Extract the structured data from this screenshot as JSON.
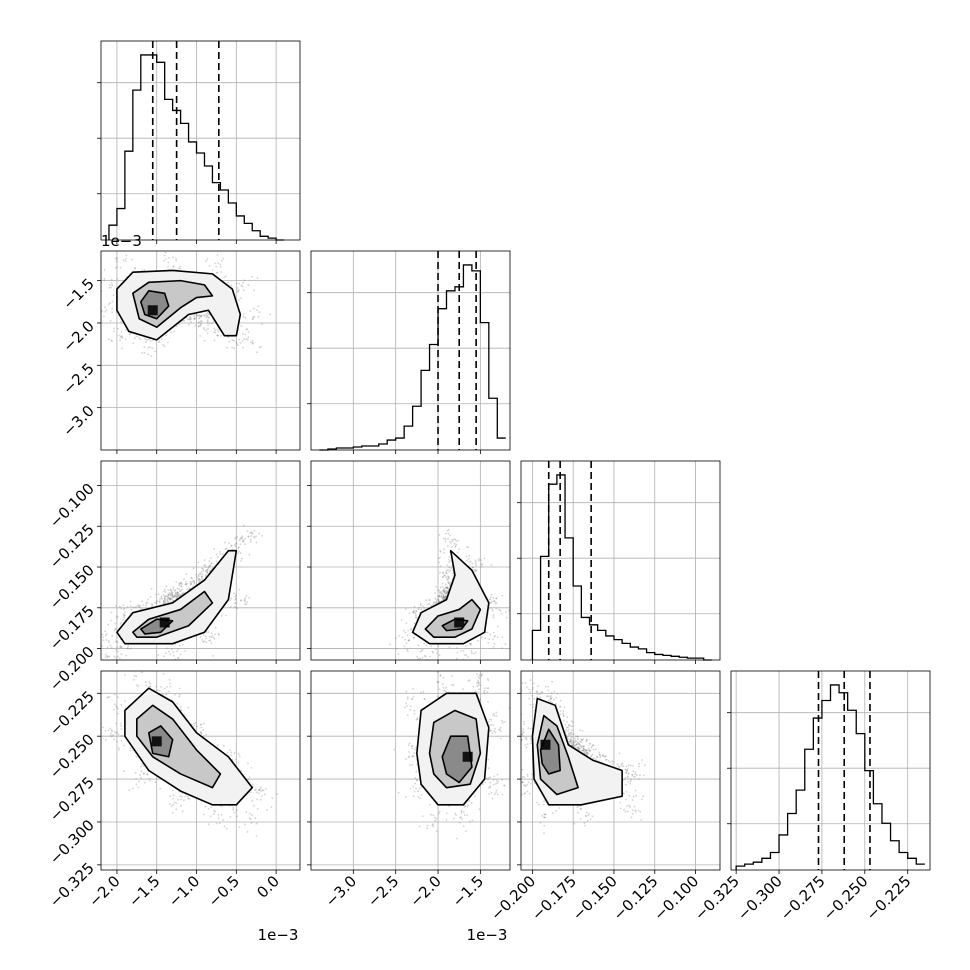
{
  "chart_data": {
    "type": "corner",
    "grid": true,
    "parameters": [
      {
        "range": [
          -0.0022,
          0.0003
        ],
        "ticks": [
          -0.002,
          -0.0015,
          -0.001,
          -0.0005,
          0.0
        ],
        "tick_labels": [
          "−2.0",
          "−1.5",
          "−1.0",
          "−0.5",
          "0.0"
        ],
        "offset_label": "1e−3",
        "quantiles": [
          -0.00155,
          -0.00125,
          -0.00072
        ]
      },
      {
        "range": [
          -0.0035,
          -0.00115
        ],
        "ticks": [
          -0.003,
          -0.0025,
          -0.002,
          -0.0015
        ],
        "tick_labels": [
          "−3.0",
          "−2.5",
          "−2.0",
          "−1.5"
        ],
        "offset_label": "1e−3",
        "quantiles": [
          -0.002,
          -0.00175,
          -0.00155
        ]
      },
      {
        "range": [
          -0.207,
          -0.085
        ],
        "ticks": [
          -0.2,
          -0.175,
          -0.15,
          -0.125,
          -0.1
        ],
        "tick_labels": [
          "−0.200",
          "−0.175",
          "−0.150",
          "−0.125",
          "−0.100"
        ],
        "offset_label": "",
        "quantiles": [
          -0.19,
          -0.183,
          -0.164
        ]
      },
      {
        "range": [
          -0.328,
          -0.212
        ],
        "ticks": [
          -0.325,
          -0.3,
          -0.275,
          -0.25,
          -0.225
        ],
        "tick_labels": [
          "−0.325",
          "−0.300",
          "−0.275",
          "−0.250",
          "−0.225"
        ],
        "offset_label": "",
        "quantiles": [
          -0.277,
          -0.262,
          -0.247
        ]
      }
    ],
    "marginals": [
      {
        "bins": [
          -0.0021,
          -0.002,
          -0.0019,
          -0.0018,
          -0.0017,
          -0.0016,
          -0.0015,
          -0.0014,
          -0.0013,
          -0.0012,
          -0.0011,
          -0.001,
          -0.0009,
          -0.0008,
          -0.0007,
          -0.0006,
          -0.0005,
          -0.0004,
          -0.0003,
          -0.0002,
          -0.0001,
          0.0,
          0.0001
        ],
        "counts": [
          0.08,
          0.17,
          0.48,
          0.81,
          1.0,
          1.0,
          0.96,
          0.76,
          0.7,
          0.63,
          0.53,
          0.47,
          0.4,
          0.31,
          0.27,
          0.2,
          0.13,
          0.09,
          0.05,
          0.02,
          0.01,
          0.0
        ]
      },
      {
        "bins": [
          -0.0034,
          -0.0033,
          -0.0032,
          -0.0031,
          -0.003,
          -0.0029,
          -0.0028,
          -0.0027,
          -0.0026,
          -0.0025,
          -0.0024,
          -0.0023,
          -0.0022,
          -0.0021,
          -0.002,
          -0.0019,
          -0.0018,
          -0.0017,
          -0.0016,
          -0.0015,
          -0.0014,
          -0.0013,
          -0.0012
        ],
        "counts": [
          0.0,
          0.005,
          0.01,
          0.01,
          0.015,
          0.02,
          0.02,
          0.03,
          0.05,
          0.06,
          0.12,
          0.22,
          0.4,
          0.53,
          0.71,
          0.8,
          0.82,
          0.93,
          0.9,
          0.64,
          0.26,
          0.06
        ]
      },
      {
        "bins": [
          -0.2,
          -0.195,
          -0.19,
          -0.185,
          -0.18,
          -0.175,
          -0.17,
          -0.165,
          -0.16,
          -0.155,
          -0.15,
          -0.145,
          -0.14,
          -0.135,
          -0.13,
          -0.125,
          -0.12,
          -0.115,
          -0.11,
          -0.105,
          -0.1,
          -0.095,
          -0.09
        ],
        "counts": [
          0.16,
          0.56,
          0.95,
          1.0,
          0.66,
          0.4,
          0.23,
          0.19,
          0.16,
          0.13,
          0.11,
          0.09,
          0.07,
          0.06,
          0.04,
          0.03,
          0.025,
          0.02,
          0.015,
          0.01,
          0.01,
          0.0
        ]
      },
      {
        "bins": [
          -0.325,
          -0.32,
          -0.315,
          -0.31,
          -0.305,
          -0.3,
          -0.295,
          -0.29,
          -0.285,
          -0.28,
          -0.275,
          -0.27,
          -0.265,
          -0.26,
          -0.255,
          -0.25,
          -0.245,
          -0.24,
          -0.235,
          -0.23,
          -0.225,
          -0.22,
          -0.215
        ],
        "counts": [
          0.02,
          0.03,
          0.04,
          0.06,
          0.09,
          0.18,
          0.29,
          0.41,
          0.62,
          0.78,
          0.87,
          0.95,
          0.91,
          0.82,
          0.7,
          0.51,
          0.34,
          0.24,
          0.15,
          0.09,
          0.06,
          0.03
        ]
      }
    ],
    "pairs": [
      {
        "x": 0,
        "y": 1,
        "peak": [
          -0.00155,
          -0.00185
        ],
        "contours": [
          [
            [
              -0.002,
              -0.0016
            ],
            [
              -0.0018,
              -0.0014
            ],
            [
              -0.0013,
              -0.00138
            ],
            [
              -0.0008,
              -0.00142
            ],
            [
              -0.00055,
              -0.0016
            ],
            [
              -0.00045,
              -0.0019
            ],
            [
              -0.0005,
              -0.00215
            ],
            [
              -0.00065,
              -0.00215
            ],
            [
              -0.00085,
              -0.00185
            ],
            [
              -0.0011,
              -0.0019
            ],
            [
              -0.0015,
              -0.0022
            ],
            [
              -0.00185,
              -0.0021
            ],
            [
              -0.002,
              -0.00185
            ]
          ],
          [
            [
              -0.0018,
              -0.00165
            ],
            [
              -0.0016,
              -0.00152
            ],
            [
              -0.0012,
              -0.0015
            ],
            [
              -0.0009,
              -0.00155
            ],
            [
              -0.0008,
              -0.00168
            ],
            [
              -0.001,
              -0.0017
            ],
            [
              -0.0012,
              -0.00182
            ],
            [
              -0.0015,
              -0.00205
            ],
            [
              -0.00172,
              -0.00195
            ]
          ],
          [
            [
              -0.0017,
              -0.00175
            ],
            [
              -0.0016,
              -0.00162
            ],
            [
              -0.0014,
              -0.00165
            ],
            [
              -0.00135,
              -0.0018
            ],
            [
              -0.0015,
              -0.00195
            ],
            [
              -0.00165,
              -0.0019
            ]
          ]
        ]
      },
      {
        "x": 0,
        "y": 2,
        "peak": [
          -0.0014,
          -0.184
        ],
        "contours": [
          [
            [
              -0.002,
              -0.19
            ],
            [
              -0.0018,
              -0.178
            ],
            [
              -0.0013,
              -0.172
            ],
            [
              -0.0009,
              -0.158
            ],
            [
              -0.0006,
              -0.14
            ],
            [
              -0.0005,
              -0.14
            ],
            [
              -0.0006,
              -0.17
            ],
            [
              -0.0009,
              -0.19
            ],
            [
              -0.0013,
              -0.197
            ],
            [
              -0.0019,
              -0.197
            ]
          ],
          [
            [
              -0.0018,
              -0.19
            ],
            [
              -0.0016,
              -0.182
            ],
            [
              -0.0012,
              -0.176
            ],
            [
              -0.0009,
              -0.165
            ],
            [
              -0.0008,
              -0.172
            ],
            [
              -0.0011,
              -0.186
            ],
            [
              -0.0015,
              -0.193
            ],
            [
              -0.00175,
              -0.193
            ]
          ],
          [
            [
              -0.0017,
              -0.188
            ],
            [
              -0.0015,
              -0.182
            ],
            [
              -0.0013,
              -0.183
            ],
            [
              -0.00145,
              -0.19
            ],
            [
              -0.00165,
              -0.191
            ]
          ]
        ]
      },
      {
        "x": 0,
        "y": 3,
        "peak": [
          -0.0015,
          -0.253
        ],
        "contours": [
          [
            [
              -0.0019,
              -0.235
            ],
            [
              -0.0016,
              -0.222
            ],
            [
              -0.0013,
              -0.23
            ],
            [
              -0.001,
              -0.248
            ],
            [
              -0.0006,
              -0.262
            ],
            [
              -0.0003,
              -0.28
            ],
            [
              -0.0005,
              -0.29
            ],
            [
              -0.0008,
              -0.29
            ],
            [
              -0.0012,
              -0.282
            ],
            [
              -0.0016,
              -0.27
            ],
            [
              -0.0019,
              -0.25
            ]
          ],
          [
            [
              -0.00175,
              -0.24
            ],
            [
              -0.00155,
              -0.232
            ],
            [
              -0.0013,
              -0.24
            ],
            [
              -0.001,
              -0.258
            ],
            [
              -0.0007,
              -0.272
            ],
            [
              -0.0008,
              -0.28
            ],
            [
              -0.0012,
              -0.272
            ],
            [
              -0.00155,
              -0.262
            ],
            [
              -0.00175,
              -0.25
            ]
          ],
          [
            [
              -0.0016,
              -0.248
            ],
            [
              -0.00145,
              -0.244
            ],
            [
              -0.0013,
              -0.252
            ],
            [
              -0.00135,
              -0.262
            ],
            [
              -0.00155,
              -0.26
            ]
          ]
        ]
      },
      {
        "x": 1,
        "y": 2,
        "peak": [
          -0.00175,
          -0.184
        ],
        "contours": [
          [
            [
              -0.0023,
              -0.19
            ],
            [
              -0.0022,
              -0.178
            ],
            [
              -0.0019,
              -0.17
            ],
            [
              -0.0018,
              -0.155
            ],
            [
              -0.00185,
              -0.14
            ],
            [
              -0.0016,
              -0.152
            ],
            [
              -0.0014,
              -0.172
            ],
            [
              -0.00145,
              -0.19
            ],
            [
              -0.0017,
              -0.197
            ],
            [
              -0.0021,
              -0.197
            ]
          ],
          [
            [
              -0.00215,
              -0.188
            ],
            [
              -0.002,
              -0.18
            ],
            [
              -0.00175,
              -0.176
            ],
            [
              -0.0016,
              -0.17
            ],
            [
              -0.0015,
              -0.176
            ],
            [
              -0.0016,
              -0.188
            ],
            [
              -0.0018,
              -0.193
            ],
            [
              -0.00205,
              -0.193
            ]
          ],
          [
            [
              -0.00195,
              -0.186
            ],
            [
              -0.0018,
              -0.182
            ],
            [
              -0.00165,
              -0.183
            ],
            [
              -0.00172,
              -0.188
            ],
            [
              -0.0019,
              -0.189
            ]
          ]
        ]
      },
      {
        "x": 1,
        "y": 3,
        "peak": [
          -0.00165,
          -0.262
        ],
        "contours": [
          [
            [
              -0.00225,
              -0.26
            ],
            [
              -0.0022,
              -0.235
            ],
            [
              -0.0019,
              -0.225
            ],
            [
              -0.00155,
              -0.225
            ],
            [
              -0.0014,
              -0.245
            ],
            [
              -0.00145,
              -0.275
            ],
            [
              -0.0017,
              -0.29
            ],
            [
              -0.002,
              -0.29
            ],
            [
              -0.0022,
              -0.278
            ]
          ],
          [
            [
              -0.0021,
              -0.26
            ],
            [
              -0.00205,
              -0.242
            ],
            [
              -0.0018,
              -0.235
            ],
            [
              -0.00155,
              -0.24
            ],
            [
              -0.0015,
              -0.26
            ],
            [
              -0.00162,
              -0.278
            ],
            [
              -0.0019,
              -0.28
            ],
            [
              -0.00205,
              -0.272
            ]
          ],
          [
            [
              -0.00195,
              -0.262
            ],
            [
              -0.00185,
              -0.25
            ],
            [
              -0.00165,
              -0.25
            ],
            [
              -0.0016,
              -0.268
            ],
            [
              -0.00175,
              -0.277
            ],
            [
              -0.0019,
              -0.272
            ]
          ]
        ]
      },
      {
        "x": 2,
        "y": 3,
        "peak": [
          -0.192,
          -0.255
        ],
        "contours": [
          [
            [
              -0.2,
              -0.25
            ],
            [
              -0.197,
              -0.228
            ],
            [
              -0.186,
              -0.232
            ],
            [
              -0.178,
              -0.255
            ],
            [
              -0.163,
              -0.264
            ],
            [
              -0.145,
              -0.27
            ],
            [
              -0.145,
              -0.285
            ],
            [
              -0.17,
              -0.29
            ],
            [
              -0.19,
              -0.29
            ],
            [
              -0.199,
              -0.275
            ]
          ],
          [
            [
              -0.197,
              -0.255
            ],
            [
              -0.193,
              -0.238
            ],
            [
              -0.185,
              -0.244
            ],
            [
              -0.178,
              -0.262
            ],
            [
              -0.172,
              -0.28
            ],
            [
              -0.185,
              -0.284
            ],
            [
              -0.195,
              -0.275
            ]
          ],
          [
            [
              -0.195,
              -0.258
            ],
            [
              -0.19,
              -0.246
            ],
            [
              -0.184,
              -0.255
            ],
            [
              -0.183,
              -0.27
            ],
            [
              -0.19,
              -0.272
            ],
            [
              -0.194,
              -0.266
            ]
          ]
        ]
      }
    ]
  }
}
